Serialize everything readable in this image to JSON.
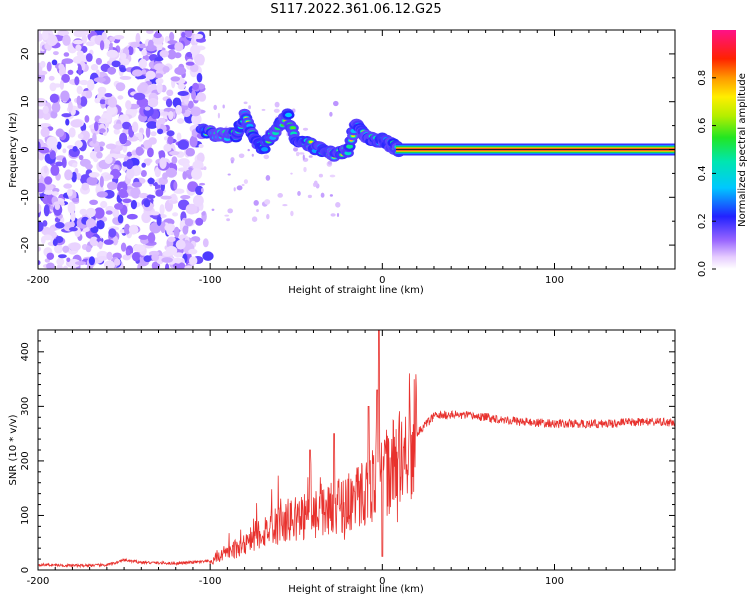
{
  "figure_title": "S117.2022.361.06.12.G25",
  "chart_data": [
    {
      "type": "heatmap",
      "xlabel": "Height of straight line (km)",
      "ylabel": "Frequency (Hz)",
      "xlim": [
        -200,
        170
      ],
      "ylim": [
        -25,
        25
      ],
      "xticks": [
        -200,
        -100,
        0,
        100
      ],
      "yticks": [
        -20,
        -10,
        0,
        10,
        20
      ],
      "colorbar": {
        "label": "Normalized spectral amplitude",
        "range": [
          0,
          1
        ],
        "ticks": [
          "0.0",
          "0.2",
          "0.4",
          "0.6",
          "0.8"
        ],
        "colormap": "white-purple-blue-cyan-green-yellow-orange-red-pink"
      },
      "features": {
        "noise_region_x": [
          -200,
          -105
        ],
        "ridge_points": [
          {
            "x": -105,
            "y": 4
          },
          {
            "x": -95,
            "y": 3
          },
          {
            "x": -85,
            "y": 3
          },
          {
            "x": -80,
            "y": 7
          },
          {
            "x": -75,
            "y": 3
          },
          {
            "x": -70,
            "y": 0
          },
          {
            "x": -62,
            "y": 4
          },
          {
            "x": -55,
            "y": 7
          },
          {
            "x": -50,
            "y": 2
          },
          {
            "x": -43,
            "y": 1
          },
          {
            "x": -35,
            "y": 0
          },
          {
            "x": -28,
            "y": -1
          },
          {
            "x": -20,
            "y": 0
          },
          {
            "x": -15,
            "y": 6
          },
          {
            "x": -10,
            "y": 3
          },
          {
            "x": -5,
            "y": 2
          },
          {
            "x": 0,
            "y": 2
          },
          {
            "x": 5,
            "y": 1
          },
          {
            "x": 10,
            "y": 0
          }
        ],
        "carrier_line": {
          "x_start": 8,
          "x_end": 170,
          "y": 0
        }
      }
    },
    {
      "type": "line",
      "xlabel": "Height of straight line (km)",
      "ylabel": "SNR (10 * v/v)",
      "xlim": [
        -200,
        170
      ],
      "ylim": [
        0,
        440
      ],
      "xticks": [
        -200,
        -100,
        0,
        100
      ],
      "yticks": [
        0,
        100,
        200,
        300,
        400
      ],
      "color": "#e8312d",
      "series_profile": [
        {
          "x": -200,
          "y": 10
        },
        {
          "x": -180,
          "y": 8
        },
        {
          "x": -160,
          "y": 9
        },
        {
          "x": -150,
          "y": 18
        },
        {
          "x": -140,
          "y": 14
        },
        {
          "x": -120,
          "y": 12
        },
        {
          "x": -100,
          "y": 16
        },
        {
          "x": -90,
          "y": 30
        },
        {
          "x": -80,
          "y": 50
        },
        {
          "x": -70,
          "y": 70
        },
        {
          "x": -60,
          "y": 85
        },
        {
          "x": -50,
          "y": 95
        },
        {
          "x": -40,
          "y": 105
        },
        {
          "x": -30,
          "y": 115
        },
        {
          "x": -20,
          "y": 125
        },
        {
          "x": -10,
          "y": 145
        },
        {
          "x": 0,
          "y": 170
        },
        {
          "x": 10,
          "y": 205
        },
        {
          "x": 20,
          "y": 250
        },
        {
          "x": 30,
          "y": 282
        },
        {
          "x": 40,
          "y": 285
        },
        {
          "x": 60,
          "y": 280
        },
        {
          "x": 80,
          "y": 272
        },
        {
          "x": 100,
          "y": 268
        },
        {
          "x": 130,
          "y": 268
        },
        {
          "x": 150,
          "y": 272
        },
        {
          "x": 170,
          "y": 270
        }
      ],
      "spikes": [
        {
          "x": -2,
          "y": 440
        },
        {
          "x": -3,
          "y": 330
        },
        {
          "x": -8,
          "y": 300
        },
        {
          "x": -28,
          "y": 250
        },
        {
          "x": -42,
          "y": 220
        },
        {
          "x": 0,
          "y": 25
        }
      ]
    }
  ]
}
